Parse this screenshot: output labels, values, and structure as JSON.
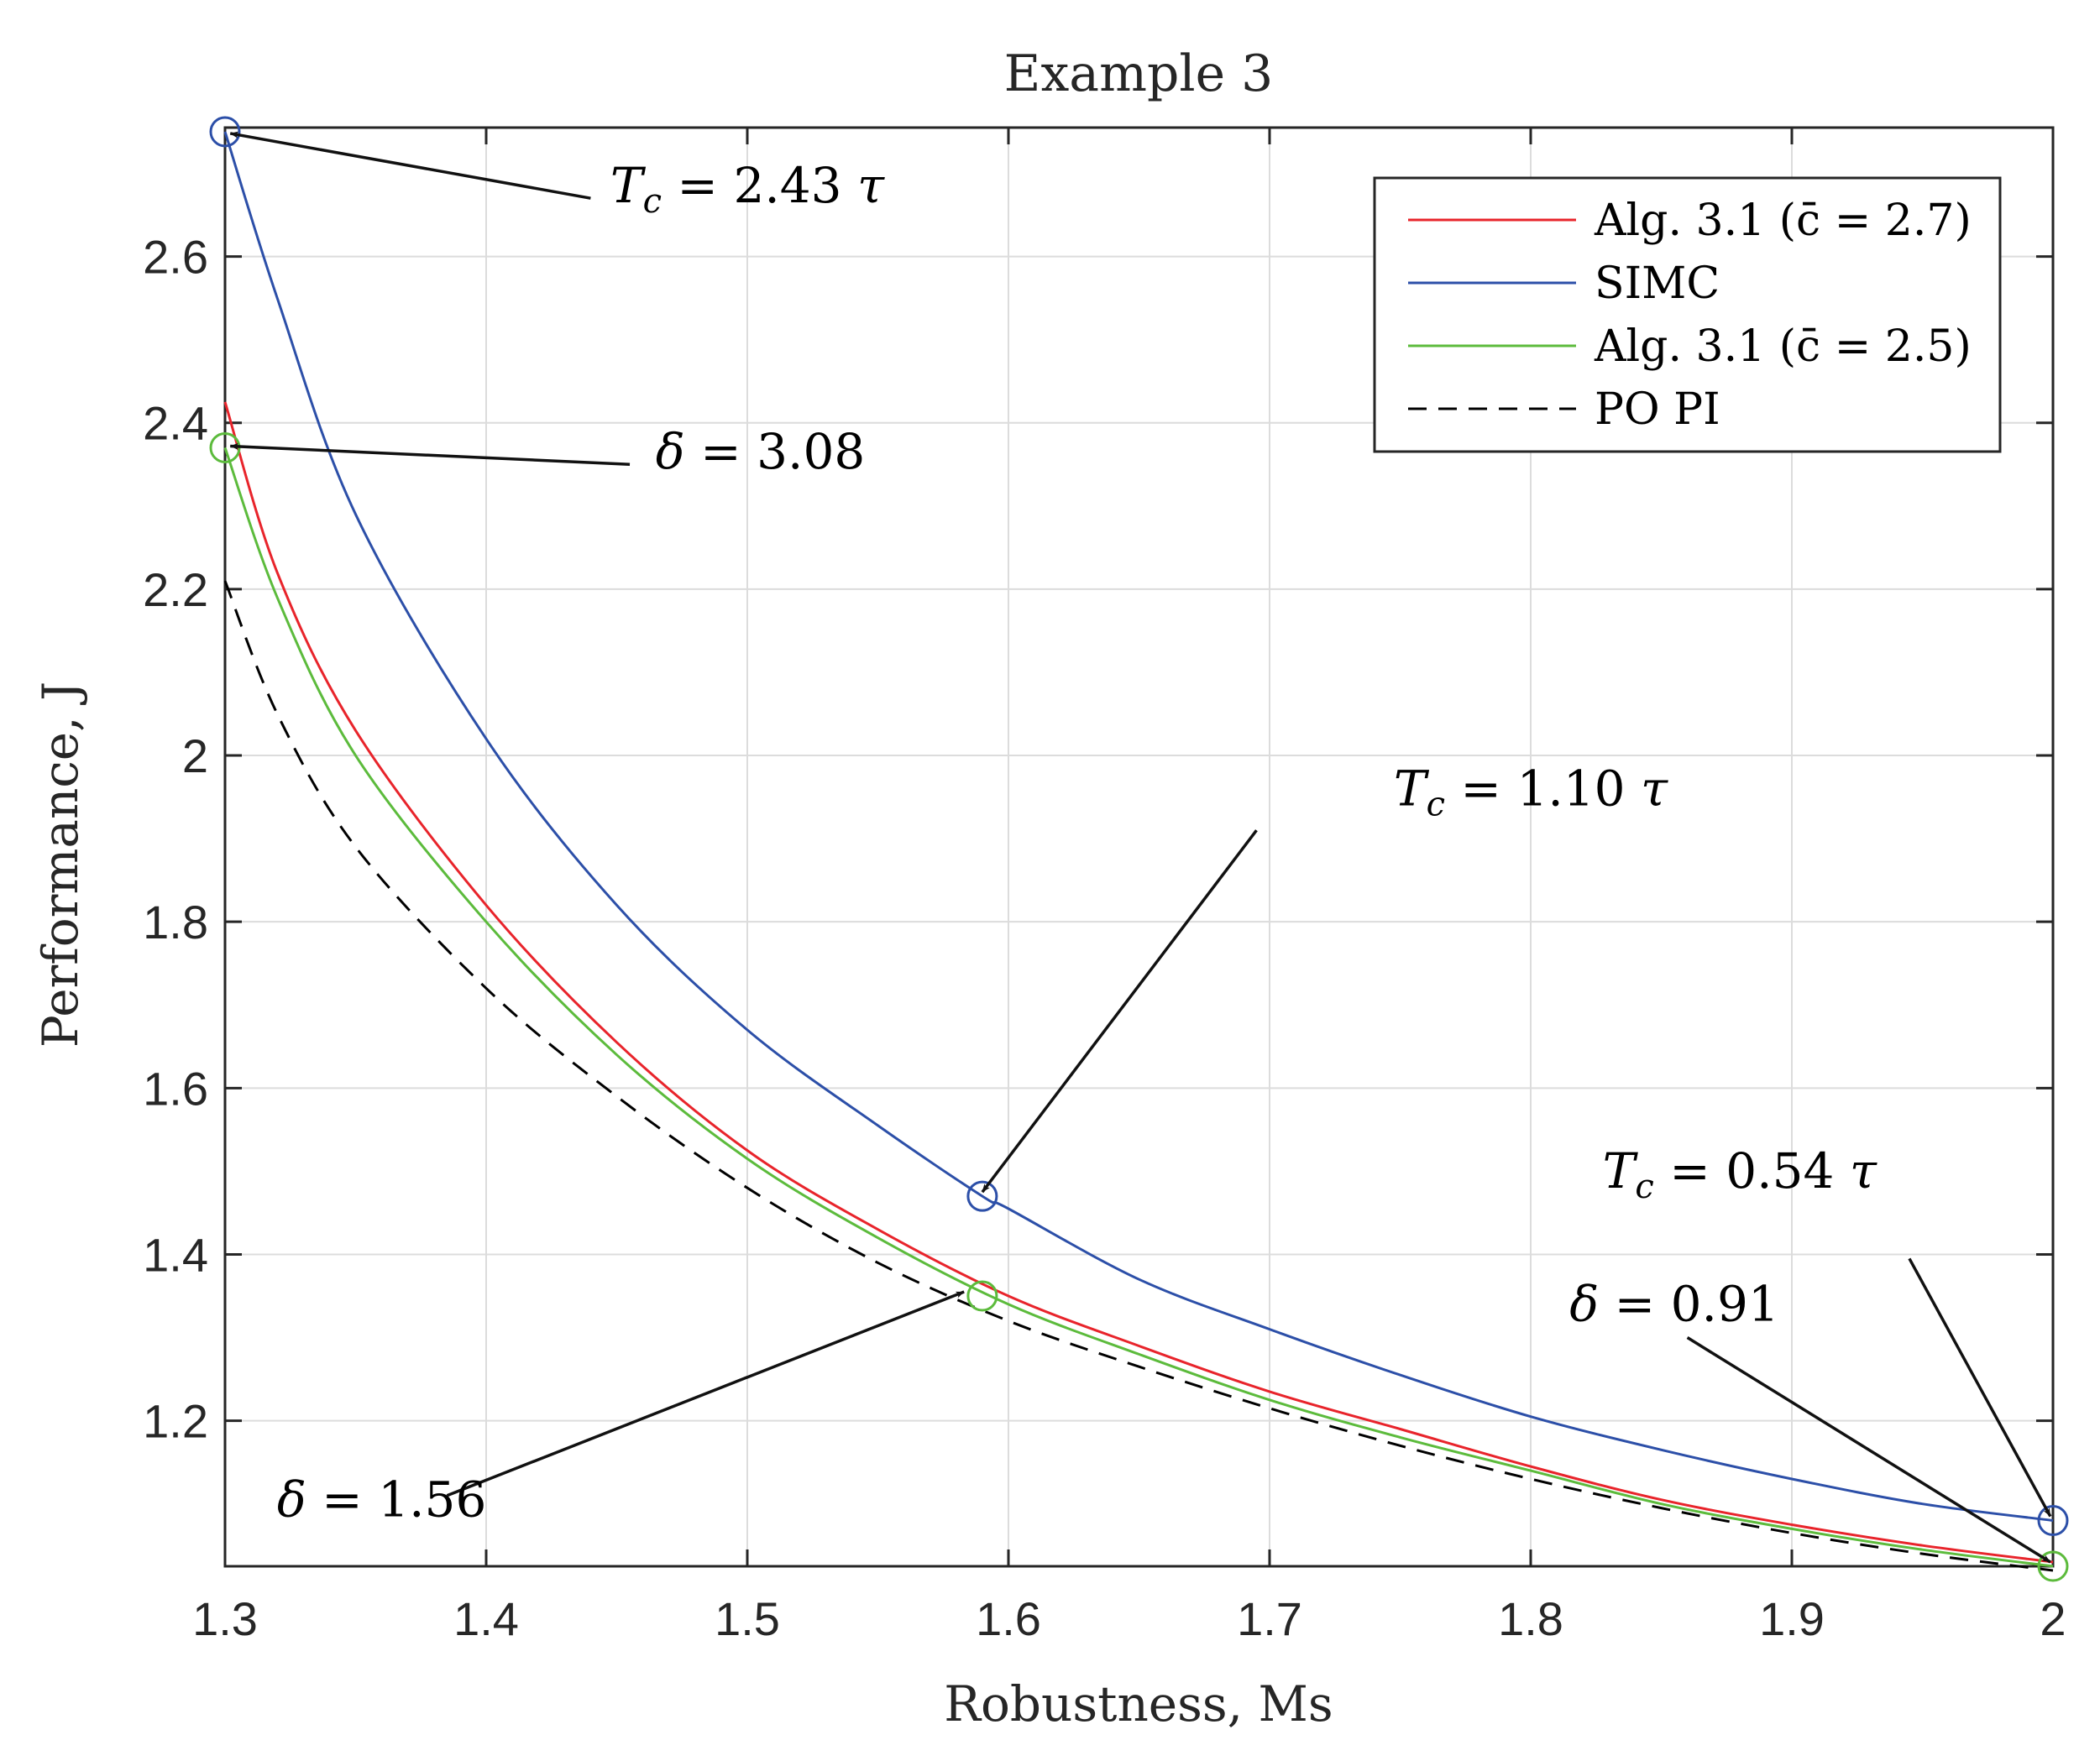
{
  "chart_data": {
    "type": "line",
    "title": "Example 3",
    "xlabel": "Robustness, Ms",
    "ylabel": "Performance, J",
    "xlim": [
      1.3,
      2.0
    ],
    "ylim": [
      1.025,
      2.755
    ],
    "xticks": [
      1.3,
      1.4,
      1.5,
      1.6,
      1.7,
      1.8,
      1.9,
      2.0
    ],
    "xtick_labels": [
      "1.3",
      "1.4",
      "1.5",
      "1.6",
      "1.7",
      "1.8",
      "1.9",
      "2"
    ],
    "yticks": [
      1.2,
      1.4,
      1.6,
      1.8,
      2.0,
      2.2,
      2.4,
      2.6
    ],
    "ytick_labels": [
      "1.2",
      "1.4",
      "1.6",
      "1.8",
      "2",
      "2.2",
      "2.4",
      "2.6"
    ],
    "grid": true,
    "legend_position": "top-right",
    "series": [
      {
        "name": "Alg. 3.1 (c̄ = 2.7)",
        "color": "#e8242b",
        "dash": "solid",
        "x": [
          1.3,
          1.32,
          1.35,
          1.4,
          1.45,
          1.5,
          1.55,
          1.6,
          1.65,
          1.7,
          1.75,
          1.8,
          1.85,
          1.9,
          1.95,
          2.0
        ],
        "y": [
          2.425,
          2.22,
          2.03,
          1.82,
          1.655,
          1.525,
          1.43,
          1.35,
          1.29,
          1.235,
          1.19,
          1.145,
          1.105,
          1.075,
          1.05,
          1.03
        ]
      },
      {
        "name": "SIMC",
        "color": "#2c4fa8",
        "dash": "solid",
        "x": [
          1.3,
          1.32,
          1.35,
          1.4,
          1.45,
          1.5,
          1.55,
          1.59,
          1.6,
          1.65,
          1.7,
          1.75,
          1.8,
          1.85,
          1.9,
          1.95,
          2.0
        ],
        "y": [
          2.75,
          2.55,
          2.29,
          2.02,
          1.82,
          1.67,
          1.555,
          1.47,
          1.455,
          1.37,
          1.31,
          1.255,
          1.205,
          1.165,
          1.13,
          1.1,
          1.08
        ]
      },
      {
        "name": "Alg. 3.1 (c̄ = 2.5)",
        "color": "#5cbb3c",
        "dash": "solid",
        "x": [
          1.3,
          1.32,
          1.35,
          1.4,
          1.45,
          1.5,
          1.55,
          1.6,
          1.65,
          1.7,
          1.75,
          1.8,
          1.85,
          1.9,
          1.95,
          2.0
        ],
        "y": [
          2.37,
          2.19,
          2.0,
          1.8,
          1.64,
          1.515,
          1.42,
          1.34,
          1.28,
          1.225,
          1.18,
          1.14,
          1.1,
          1.07,
          1.045,
          1.025
        ]
      },
      {
        "name": "PO PI",
        "color": "#000000",
        "dash": "dashed",
        "x": [
          1.3,
          1.32,
          1.35,
          1.4,
          1.45,
          1.5,
          1.55,
          1.6,
          1.65,
          1.7,
          1.75,
          1.8,
          1.85,
          1.9,
          1.95,
          2.0
        ],
        "y": [
          2.21,
          2.05,
          1.89,
          1.72,
          1.59,
          1.48,
          1.39,
          1.32,
          1.265,
          1.215,
          1.17,
          1.13,
          1.095,
          1.065,
          1.04,
          1.02
        ]
      }
    ],
    "markers": [
      {
        "series": "SIMC",
        "x": 1.3,
        "y": 2.75,
        "color": "#2c4fa8"
      },
      {
        "series": "SIMC",
        "x": 1.59,
        "y": 1.47,
        "color": "#2c4fa8"
      },
      {
        "series": "SIMC",
        "x": 2.0,
        "y": 1.08,
        "color": "#2c4fa8"
      },
      {
        "series": "Alg. 3.1 (c̄ = 2.5)",
        "x": 1.3,
        "y": 2.37,
        "color": "#5cbb3c"
      },
      {
        "series": "Alg. 3.1 (c̄ = 2.5)",
        "x": 1.59,
        "y": 1.35,
        "color": "#5cbb3c"
      },
      {
        "series": "Alg. 3.1 (c̄ = 2.5)",
        "x": 2.0,
        "y": 1.025,
        "color": "#5cbb3c"
      }
    ],
    "annotations": [
      {
        "text": "Tc = 2.43 τ",
        "text_at": [
          1.5,
          2.665
        ],
        "tail": [
          1.44,
          2.67
        ],
        "head": [
          1.302,
          2.748
        ]
      },
      {
        "text": "δ = 3.08",
        "text_at": [
          1.505,
          2.345
        ],
        "tail": [
          1.455,
          2.35
        ],
        "head": [
          1.302,
          2.372
        ]
      },
      {
        "text": "Tc = 1.10 τ",
        "text_at": [
          1.8,
          1.94
        ],
        "tail": [
          1.695,
          1.91
        ],
        "head": [
          1.59,
          1.475
        ]
      },
      {
        "text": "δ = 1.56",
        "text_at": [
          1.36,
          1.085
        ],
        "tail": [
          1.385,
          1.11
        ],
        "head": [
          1.583,
          1.355
        ]
      },
      {
        "text": "Tc = 0.54 τ",
        "text_at": [
          1.88,
          1.48
        ],
        "tail": [
          1.945,
          1.395
        ],
        "head": [
          1.999,
          1.085
        ]
      },
      {
        "text": "δ = 0.91",
        "text_at": [
          1.855,
          1.32
        ],
        "tail": [
          1.86,
          1.3
        ],
        "head": [
          1.999,
          1.03
        ]
      }
    ]
  }
}
